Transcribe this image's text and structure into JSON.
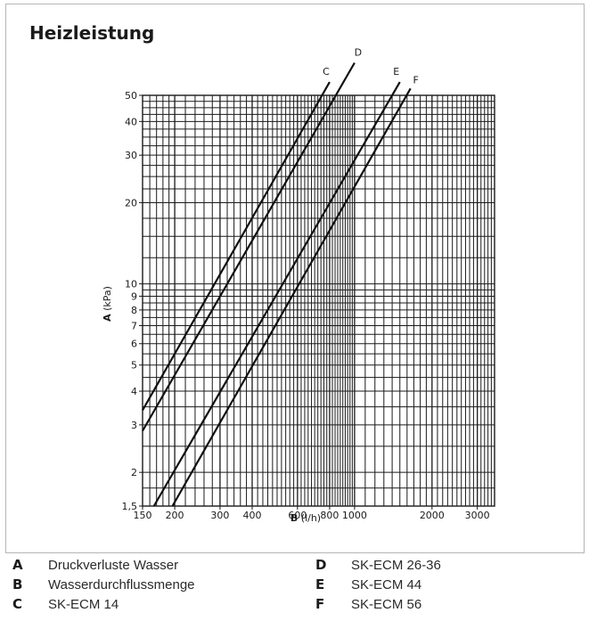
{
  "title": "Heizleistung",
  "chart_data": {
    "type": "line",
    "x_scale": "log",
    "y_scale": "log",
    "xlim": [
      150,
      3500
    ],
    "ylim": [
      1.5,
      50
    ],
    "grid": true,
    "x_ticks": [
      150,
      200,
      300,
      400,
      600,
      800,
      1000,
      2000,
      3000
    ],
    "x_tick_labels": [
      "150",
      "200",
      "300",
      "400",
      "600",
      "800",
      "1000",
      "2000",
      "3000"
    ],
    "y_ticks": [
      1.5,
      2,
      3,
      4,
      5,
      6,
      7,
      8,
      9,
      10,
      20,
      30,
      40,
      50
    ],
    "y_tick_labels": [
      "1,5",
      "2",
      "3",
      "4",
      "5",
      "6",
      "7",
      "8",
      "9",
      "10",
      "20",
      "30",
      "40",
      "50"
    ],
    "xlabel": {
      "key": "B",
      "unit": "(l/h)"
    },
    "ylabel": {
      "key": "A",
      "unit": "(kPa)"
    },
    "series": [
      {
        "name": "C",
        "points": [
          [
            150,
            3.4
          ],
          [
            800,
            56
          ]
        ]
      },
      {
        "name": "D",
        "points": [
          [
            150,
            2.85
          ],
          [
            1000,
            66
          ]
        ]
      },
      {
        "name": "E",
        "points": [
          [
            166,
            1.5
          ],
          [
            1500,
            56
          ]
        ]
      },
      {
        "name": "F",
        "points": [
          [
            196,
            1.5
          ],
          [
            1650,
            53
          ]
        ]
      }
    ]
  },
  "legend": [
    {
      "key": "A",
      "text": "Druckverluste Wasser"
    },
    {
      "key": "B",
      "text": "Wasserdurchflussmenge"
    },
    {
      "key": "C",
      "text": "SK-ECM 14"
    },
    {
      "key": "D",
      "text": "SK-ECM 26-36"
    },
    {
      "key": "E",
      "text": "SK-ECM 44"
    },
    {
      "key": "F",
      "text": "SK-ECM 56"
    }
  ]
}
